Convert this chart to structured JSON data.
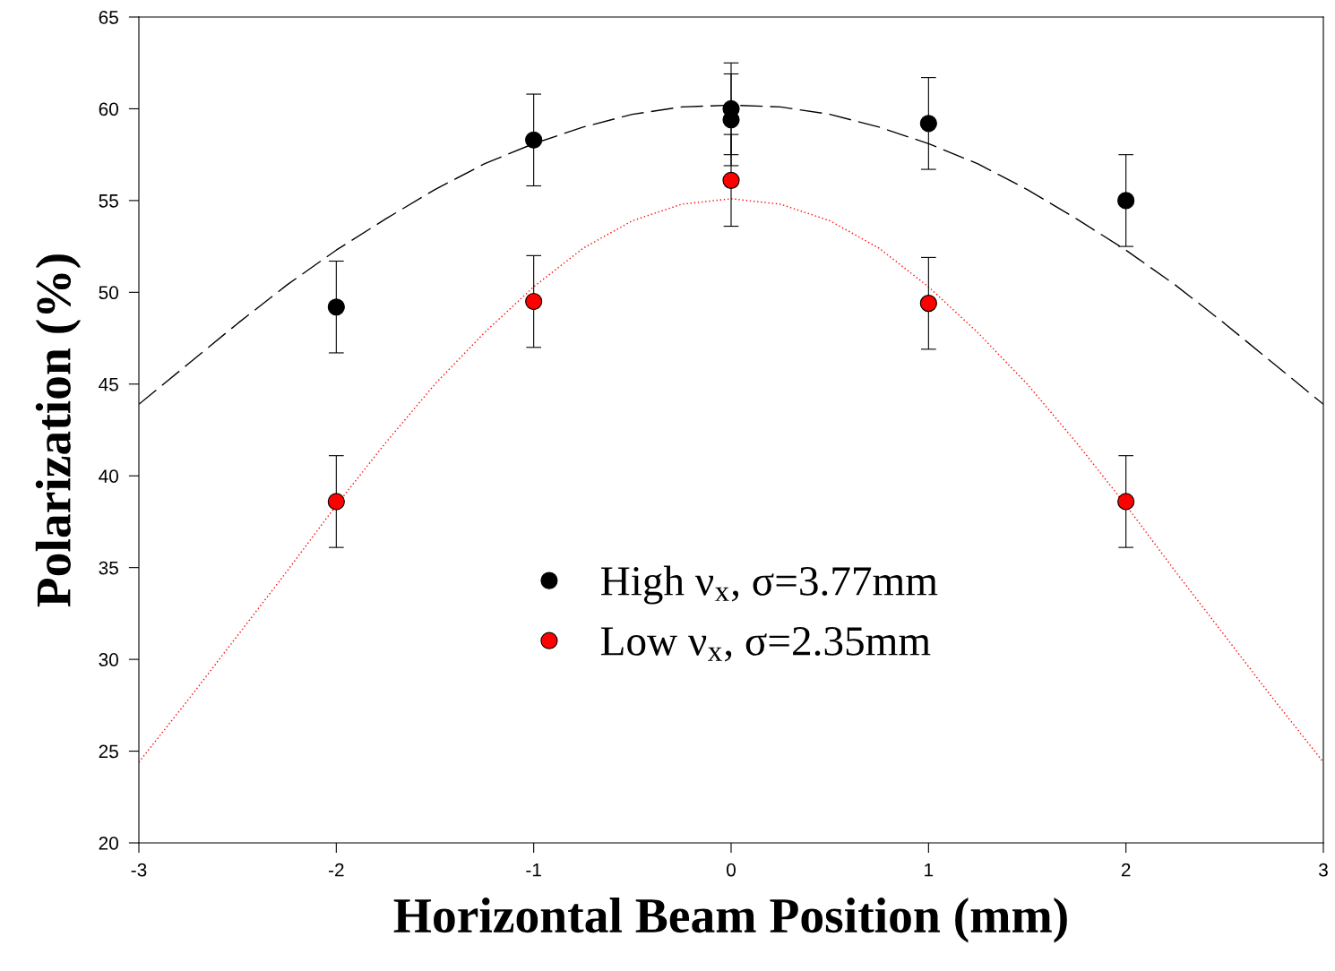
{
  "chart_data": {
    "type": "scatter",
    "xlabel": "Horizontal Beam Position (mm)",
    "ylabel": "Polarization (%)",
    "xlim": [
      -3,
      3
    ],
    "xticks": [
      -3,
      -2,
      -1,
      0,
      1,
      2,
      3
    ],
    "ylim": [
      20,
      65
    ],
    "yticks": [
      20,
      25,
      30,
      35,
      40,
      45,
      50,
      55,
      60,
      65
    ],
    "grid": false,
    "legend": "bottom",
    "marker": "circle",
    "series": [
      {
        "name": "High ν$_{x}$, σ=3.77mm",
        "color": "#000000",
        "x": [
          -2,
          -1,
          0,
          0,
          1,
          2
        ],
        "values": [
          49.2,
          58.3,
          60.0,
          59.4,
          59.2,
          55.0
        ],
        "errors": [
          2.5,
          2.5,
          2.5,
          2.5,
          2.5,
          2.5
        ]
      },
      {
        "name": "Low ν$_{x}$, σ=2.35mm",
        "color": "#ff0000",
        "x": [
          -2,
          -1,
          0,
          1,
          2
        ],
        "values": [
          38.6,
          49.5,
          56.1,
          49.4,
          38.6
        ],
        "errors": [
          2.5,
          2.5,
          2.5,
          2.5,
          2.5
        ]
      },
      {
        "type": "line",
        "color": "#000000",
        "line_style": "dashed",
        "marker": "none",
        "x": [
          -3,
          -2.75,
          -2.5,
          -2.25,
          -2,
          -1.75,
          -1.5,
          -1.25,
          -1,
          -0.75,
          -0.5,
          -0.25,
          0,
          0.25,
          0.5,
          0.75,
          1,
          1.25,
          1.5,
          1.75,
          2,
          2.25,
          2.5,
          2.75,
          3
        ],
        "values": [
          43.9,
          46.1,
          48.3,
          50.4,
          52.3,
          54.0,
          55.6,
          57.0,
          58.1,
          59.0,
          59.7,
          60.1,
          60.2,
          60.1,
          59.7,
          59.0,
          58.1,
          57.0,
          55.6,
          54.0,
          52.3,
          50.4,
          48.3,
          46.1,
          43.9
        ]
      },
      {
        "type": "line",
        "color": "#ff0000",
        "line_style": "dotted",
        "marker": "none",
        "x": [
          -3,
          -2.75,
          -2.5,
          -2.25,
          -2,
          -1.75,
          -1.5,
          -1.25,
          -1,
          -0.75,
          -0.5,
          -0.25,
          0,
          0.25,
          0.5,
          0.75,
          1,
          1.25,
          1.5,
          1.75,
          2,
          2.25,
          2.5,
          2.75,
          3
        ],
        "values": [
          24.4,
          27.8,
          31.3,
          34.8,
          38.4,
          41.8,
          45.0,
          47.8,
          50.3,
          52.4,
          53.9,
          54.8,
          55.1,
          54.8,
          53.9,
          52.4,
          50.3,
          47.8,
          45.0,
          41.8,
          38.4,
          34.8,
          31.3,
          27.8,
          24.4
        ]
      }
    ]
  }
}
